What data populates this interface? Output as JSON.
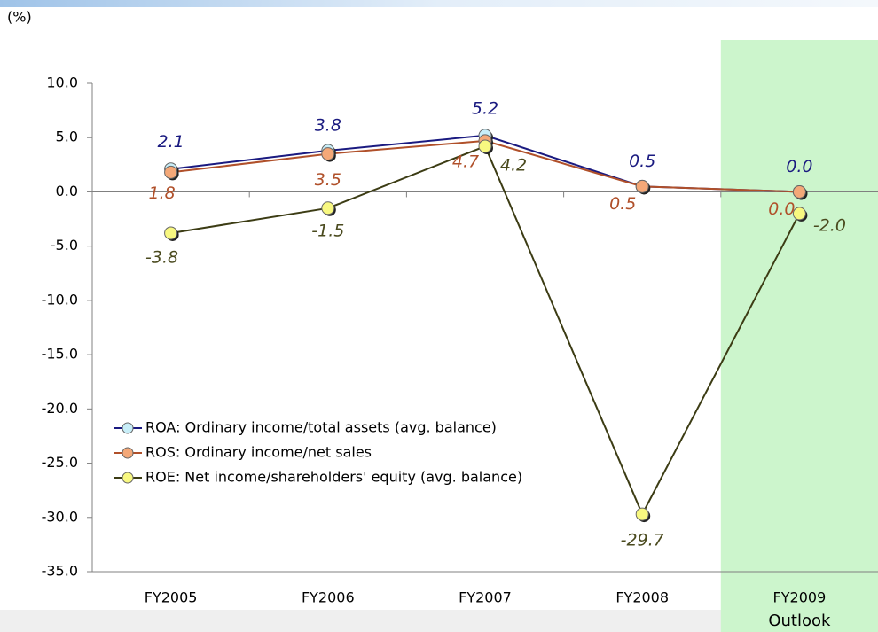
{
  "chart_data": {
    "type": "line",
    "unit_label": "(%)",
    "highlight_note": "Outlook",
    "categories": [
      "FY2005",
      "FY2006",
      "FY2007",
      "FY2008",
      "FY2009"
    ],
    "series": [
      {
        "name": "ROA: Ordinary income/total assets (avg. balance)",
        "color": "#1a1a80",
        "marker_color": "#c8eef8",
        "values": [
          2.1,
          3.8,
          5.2,
          0.5,
          0.0
        ],
        "value_labels": [
          "2.1",
          "3.8",
          "5.2",
          "0.5",
          "0.0"
        ],
        "label_color": "#1a1a80"
      },
      {
        "name": "ROS: Ordinary income/net sales",
        "color": "#b0502a",
        "marker_color": "#f4a878",
        "values": [
          1.8,
          3.5,
          4.7,
          0.5,
          0.0
        ],
        "value_labels": [
          "1.8",
          "3.5",
          "4.7",
          "0.5",
          "0.0"
        ],
        "label_color": "#b0502a"
      },
      {
        "name": "ROE: Net income/shareholders' equity (avg. balance)",
        "color": "#3c3c14",
        "marker_color": "#f8f880",
        "values": [
          -3.8,
          -1.5,
          4.2,
          -29.7,
          -2.0
        ],
        "value_labels": [
          "-3.8",
          "-1.5",
          "4.2",
          "-29.7",
          "-2.0"
        ],
        "label_color": "#4a4a1e"
      }
    ],
    "ylim": [
      -35,
      10
    ],
    "yticks": [
      {
        "value": -35,
        "label": "-35.0"
      },
      {
        "value": -30,
        "label": "-30.0"
      },
      {
        "value": -25,
        "label": "-25.0"
      },
      {
        "value": -20,
        "label": "-20.0"
      },
      {
        "value": -15,
        "label": "-15.0"
      },
      {
        "value": -10,
        "label": "-10.0"
      },
      {
        "value": -5,
        "label": "-5.0"
      },
      {
        "value": 0,
        "label": "0.0"
      },
      {
        "value": 5,
        "label": "5.0"
      },
      {
        "value": 10,
        "label": "10.0"
      }
    ],
    "highlight_category": 4,
    "highlight_color": "#ccf5cc",
    "legend": "lower left"
  }
}
